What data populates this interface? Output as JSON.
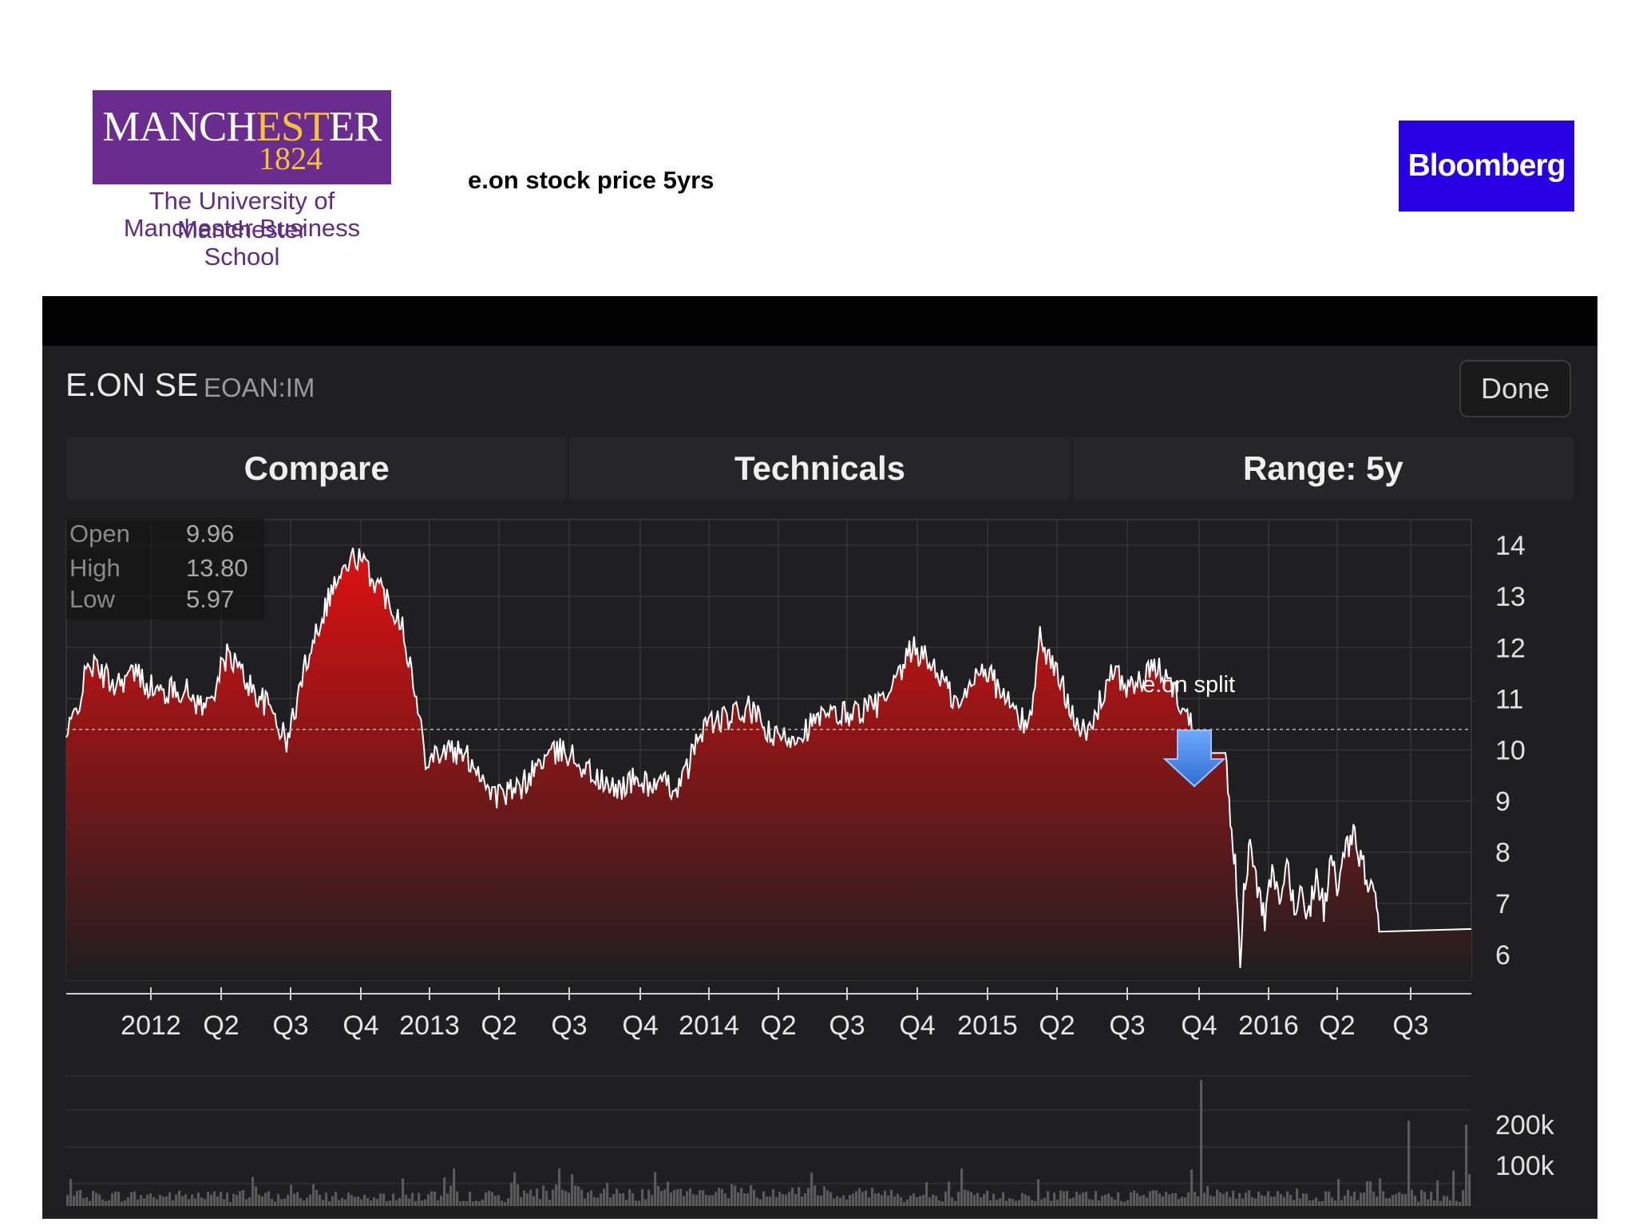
{
  "header": {
    "university": {
      "word_pre": "MANCH",
      "word_est": "EST",
      "word_post": "ER",
      "year": "1824",
      "line1": "The University of Manchester",
      "line2": "Manchester Business School"
    },
    "slide_title": "e.on stock price 5yrs",
    "bloomberg": "Bloomberg"
  },
  "app": {
    "stock_name": "E.ON SE",
    "ticker": "EOAN:IM",
    "done_label": "Done",
    "toolbar": [
      "Compare",
      "Technicals",
      "Range: 5y"
    ],
    "ohl": [
      {
        "label": "Open",
        "value": "9.96"
      },
      {
        "label": "High",
        "value": "13.80"
      },
      {
        "label": "Low",
        "value": "5.97"
      }
    ],
    "annotation": "e.on split",
    "colors": {
      "area_top": "#e01010",
      "area_bottom": "#1e1e20",
      "line": "#ffffff",
      "background": "#1f1f21"
    }
  },
  "chart_data": {
    "type": "area",
    "x_labels": [
      "2012",
      "Q2",
      "Q3",
      "Q4",
      "2013",
      "Q2",
      "Q3",
      "Q4",
      "2014",
      "Q2",
      "Q3",
      "Q4",
      "2015",
      "Q2",
      "Q3",
      "Q4",
      "2016",
      "Q2",
      "Q3"
    ],
    "y_ticks": [
      "14",
      "13",
      "12",
      "11",
      "10",
      "9",
      "8",
      "7",
      "6"
    ],
    "ylim": [
      5.5,
      14.5
    ],
    "reference_value": 10.4,
    "price_keypoints": [
      [
        0.0,
        10.2
      ],
      [
        0.01,
        10.9
      ],
      [
        0.02,
        11.7
      ],
      [
        0.04,
        11.3
      ],
      [
        0.06,
        11.5
      ],
      [
        0.08,
        11.1
      ],
      [
        0.1,
        11.2
      ],
      [
        0.12,
        10.8
      ],
      [
        0.14,
        11.9
      ],
      [
        0.16,
        11.2
      ],
      [
        0.18,
        10.7
      ],
      [
        0.19,
        10.1
      ],
      [
        0.21,
        12.0
      ],
      [
        0.23,
        13.2
      ],
      [
        0.25,
        13.8
      ],
      [
        0.27,
        13.2
      ],
      [
        0.29,
        12.5
      ],
      [
        0.31,
        9.9
      ],
      [
        0.33,
        10.0
      ],
      [
        0.35,
        9.8
      ],
      [
        0.37,
        9.1
      ],
      [
        0.39,
        9.2
      ],
      [
        0.41,
        9.8
      ],
      [
        0.43,
        10.0
      ],
      [
        0.45,
        9.6
      ],
      [
        0.47,
        9.2
      ],
      [
        0.49,
        9.4
      ],
      [
        0.51,
        9.3
      ],
      [
        0.53,
        9.3
      ],
      [
        0.55,
        10.5
      ],
      [
        0.57,
        10.6
      ],
      [
        0.59,
        10.8
      ],
      [
        0.61,
        10.2
      ],
      [
        0.63,
        10.3
      ],
      [
        0.65,
        10.6
      ],
      [
        0.67,
        10.7
      ],
      [
        0.69,
        10.8
      ],
      [
        0.71,
        11.0
      ],
      [
        0.73,
        12.0
      ],
      [
        0.75,
        11.6
      ],
      [
        0.77,
        10.8
      ],
      [
        0.79,
        11.7
      ],
      [
        0.81,
        11.0
      ],
      [
        0.83,
        10.4
      ],
      [
        0.84,
        12.2
      ],
      [
        0.86,
        11.2
      ],
      [
        0.88,
        10.2
      ],
      [
        0.89,
        10.8
      ],
      [
        0.9,
        11.5
      ],
      [
        0.92,
        11.2
      ],
      [
        0.94,
        11.6
      ],
      [
        0.95,
        11.4
      ],
      [
        0.96,
        11.0
      ],
      [
        0.97,
        10.5
      ],
      [
        0.98,
        10.2
      ],
      [
        0.985,
        10.0
      ]
    ],
    "price_tail": [
      [
        0.0,
        10.0
      ],
      [
        0.02,
        8.5
      ],
      [
        0.04,
        7.8
      ],
      [
        0.06,
        6.0
      ],
      [
        0.08,
        7.5
      ],
      [
        0.1,
        8.1
      ],
      [
        0.13,
        7.3
      ],
      [
        0.16,
        6.7
      ],
      [
        0.19,
        7.6
      ],
      [
        0.22,
        6.9
      ],
      [
        0.25,
        7.8
      ],
      [
        0.28,
        6.9
      ],
      [
        0.31,
        7.2
      ],
      [
        0.34,
        6.8
      ],
      [
        0.37,
        7.6
      ],
      [
        0.4,
        6.9
      ],
      [
        0.43,
        7.8
      ],
      [
        0.46,
        7.3
      ],
      [
        0.49,
        8.0
      ],
      [
        0.52,
        8.3
      ],
      [
        0.55,
        7.9
      ],
      [
        0.58,
        7.4
      ],
      [
        0.61,
        7.0
      ],
      [
        0.63,
        6.5
      ]
    ],
    "volume_ticks": [
      "200k",
      "100k"
    ],
    "volume_ylim": [
      0,
      320
    ]
  }
}
